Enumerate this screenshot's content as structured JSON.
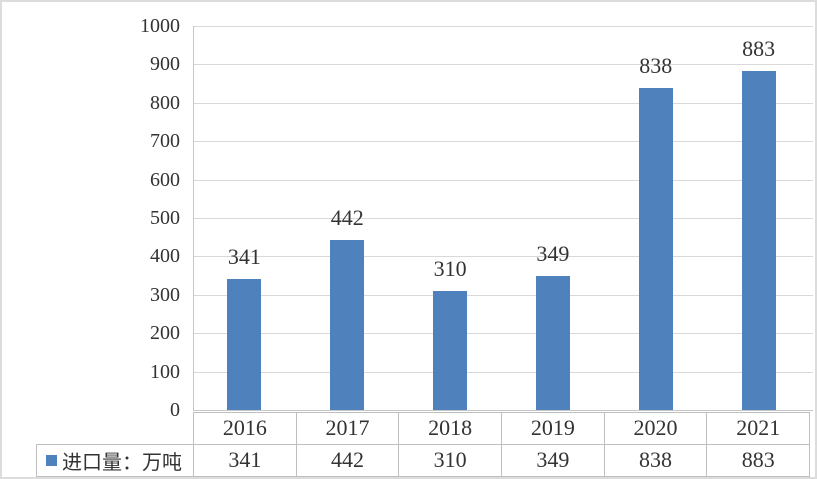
{
  "chart_data": {
    "type": "bar",
    "categories": [
      "2016",
      "2017",
      "2018",
      "2019",
      "2020",
      "2021"
    ],
    "series": [
      {
        "name": "进口量：万吨",
        "values": [
          341,
          442,
          310,
          349,
          838,
          883
        ]
      }
    ],
    "data_labels": [
      "341",
      "442",
      "310",
      "349",
      "838",
      "883"
    ],
    "y_ticks": [
      0,
      100,
      200,
      300,
      400,
      500,
      600,
      700,
      800,
      900,
      1000
    ],
    "ylim": [
      0,
      1000
    ],
    "grid": true,
    "legend_position": "bottom-left-data-table",
    "data_table_shown": true
  },
  "legend": {
    "label": "进口量：万吨"
  },
  "colors": {
    "bar": "#4F81BD",
    "gridline": "#D9D9D9",
    "axis_line": "#C6C6C6",
    "table_border": "#BFBFBF",
    "text": "#333333",
    "frame": "#DCDCDC"
  }
}
